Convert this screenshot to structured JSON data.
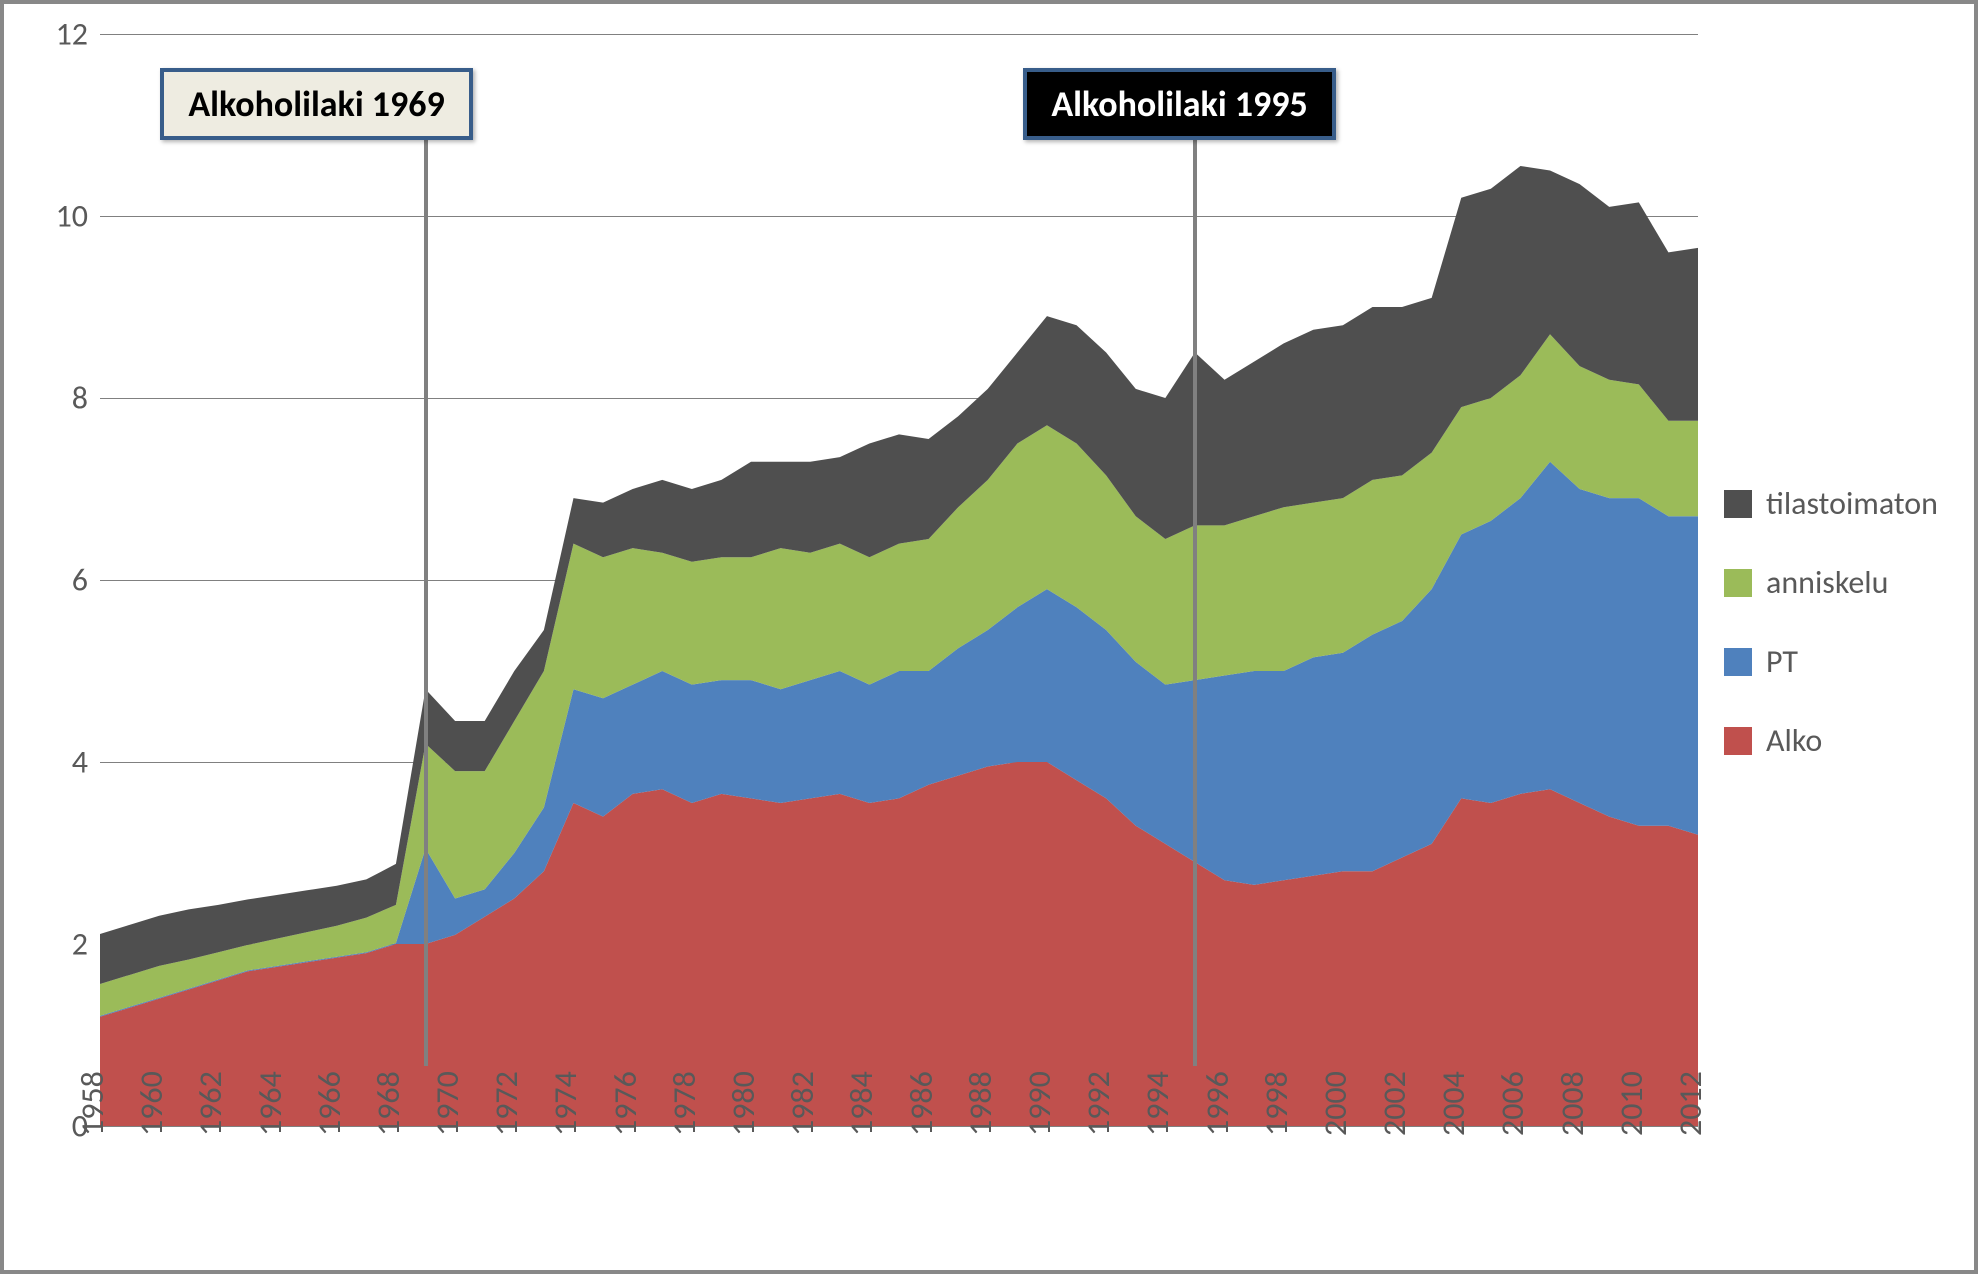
{
  "chart": {
    "type": "area-stacked",
    "background_color": "#ffffff",
    "border_color": "#888888",
    "grid_color": "#808080",
    "text_color": "#595959",
    "font_family": "Calibri",
    "font_size_axis": 32,
    "font_size_callout": 36,
    "ylim": [
      0,
      12
    ],
    "ytick_step": 2,
    "yticks": [
      0,
      2,
      4,
      6,
      8,
      10,
      12
    ],
    "x_categories": [
      1958,
      1959,
      1960,
      1961,
      1962,
      1963,
      1964,
      1965,
      1966,
      1967,
      1968,
      1969,
      1970,
      1971,
      1972,
      1973,
      1974,
      1975,
      1976,
      1977,
      1978,
      1979,
      1980,
      1981,
      1982,
      1983,
      1984,
      1985,
      1986,
      1987,
      1988,
      1989,
      1990,
      1991,
      1992,
      1993,
      1994,
      1995,
      1996,
      1997,
      1998,
      1999,
      2000,
      2001,
      2002,
      2003,
      2004,
      2005,
      2006,
      2007,
      2008,
      2009,
      2010,
      2011,
      2012
    ],
    "x_tick_labels": [
      1958,
      1960,
      1962,
      1964,
      1966,
      1968,
      1970,
      1972,
      1974,
      1976,
      1978,
      1980,
      1982,
      1984,
      1986,
      1988,
      1990,
      1992,
      1994,
      1996,
      1998,
      2000,
      2002,
      2004,
      2006,
      2008,
      2010,
      2012
    ],
    "series_order": [
      "Alko",
      "PT",
      "anniskelu",
      "tilastoimaton"
    ],
    "series": {
      "Alko": {
        "color": "#c0504d",
        "values": [
          1.2,
          1.3,
          1.4,
          1.5,
          1.6,
          1.7,
          1.75,
          1.8,
          1.85,
          1.9,
          2.0,
          2.0,
          2.1,
          2.3,
          2.5,
          2.8,
          3.55,
          3.4,
          3.65,
          3.7,
          3.55,
          3.65,
          3.6,
          3.55,
          3.6,
          3.65,
          3.55,
          3.6,
          3.75,
          3.85,
          3.95,
          4.0,
          4.0,
          3.8,
          3.6,
          3.3,
          3.1,
          2.9,
          2.7,
          2.65,
          2.7,
          2.75,
          2.8,
          2.8,
          2.95,
          3.1,
          3.6,
          3.55,
          3.65,
          3.7,
          3.55,
          3.4,
          3.3,
          3.3,
          3.2
        ]
      },
      "PT": {
        "color": "#4f81bd",
        "values": [
          0.01,
          0.01,
          0.01,
          0.01,
          0.01,
          0.01,
          0.01,
          0.01,
          0.01,
          0.01,
          0.01,
          1.05,
          0.4,
          0.3,
          0.5,
          0.7,
          1.25,
          1.3,
          1.2,
          1.3,
          1.3,
          1.25,
          1.3,
          1.25,
          1.3,
          1.35,
          1.3,
          1.4,
          1.25,
          1.4,
          1.5,
          1.7,
          1.9,
          1.9,
          1.85,
          1.8,
          1.75,
          2.0,
          2.25,
          2.35,
          2.3,
          2.4,
          2.4,
          2.6,
          2.6,
          2.8,
          2.9,
          3.1,
          3.25,
          3.6,
          3.45,
          3.5,
          3.6,
          3.4,
          3.5
        ]
      },
      "anniskelu": {
        "color": "#9bbb59",
        "values": [
          0.35,
          0.35,
          0.35,
          0.32,
          0.3,
          0.28,
          0.3,
          0.32,
          0.34,
          0.38,
          0.42,
          1.15,
          1.4,
          1.3,
          1.45,
          1.5,
          1.6,
          1.55,
          1.5,
          1.3,
          1.35,
          1.35,
          1.35,
          1.55,
          1.4,
          1.4,
          1.4,
          1.4,
          1.45,
          1.55,
          1.65,
          1.8,
          1.8,
          1.8,
          1.7,
          1.6,
          1.6,
          1.7,
          1.65,
          1.7,
          1.8,
          1.7,
          1.7,
          1.7,
          1.6,
          1.5,
          1.4,
          1.35,
          1.35,
          1.4,
          1.35,
          1.3,
          1.25,
          1.05,
          1.05
        ]
      },
      "tilastoimaton": {
        "color": "#4f4f4f",
        "values": [
          0.55,
          0.55,
          0.55,
          0.55,
          0.52,
          0.5,
          0.48,
          0.46,
          0.44,
          0.42,
          0.45,
          0.6,
          0.55,
          0.55,
          0.55,
          0.45,
          0.5,
          0.6,
          0.65,
          0.8,
          0.8,
          0.85,
          1.05,
          0.95,
          1.0,
          0.95,
          1.25,
          1.2,
          1.1,
          1.0,
          1.0,
          1.0,
          1.2,
          1.3,
          1.35,
          1.4,
          1.55,
          1.9,
          1.6,
          1.7,
          1.8,
          1.9,
          1.9,
          1.9,
          1.85,
          1.7,
          2.3,
          2.3,
          2.3,
          1.8,
          2.0,
          1.9,
          2.0,
          1.85,
          1.9
        ]
      }
    },
    "legend": {
      "position": "right",
      "items": [
        {
          "label": "tilastoimaton",
          "color": "#4f4f4f"
        },
        {
          "label": "anniskelu",
          "color": "#9bbb59"
        },
        {
          "label": "PT",
          "color": "#4f81bd"
        },
        {
          "label": "Alko",
          "color": "#c0504d"
        }
      ]
    },
    "callouts": [
      {
        "label": "Alkoholilaki 1969",
        "x_category": 1969,
        "bg": "#eeece1",
        "fg": "#000000",
        "border": "#385d8a"
      },
      {
        "label": "Alkoholilaki 1995",
        "x_category": 1995,
        "bg": "#000000",
        "fg": "#ffffff",
        "border": "#385d8a"
      }
    ]
  }
}
